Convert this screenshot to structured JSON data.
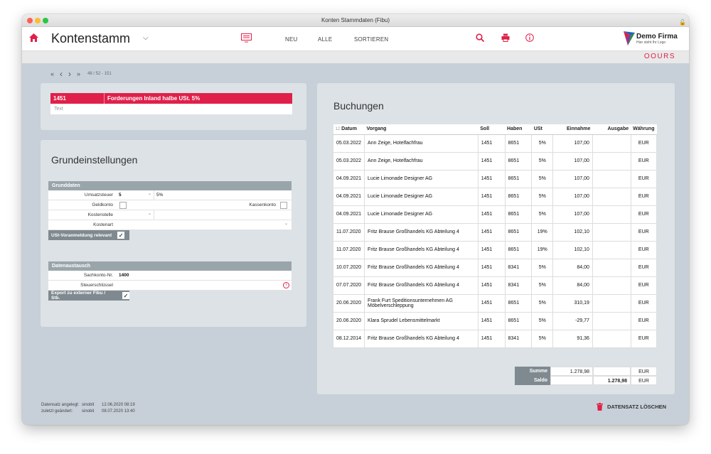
{
  "window": {
    "title": "Konten Stammdaten (Fibu)"
  },
  "header": {
    "title": "Kontenstamm",
    "nav": {
      "new": "NEU",
      "all": "ALLE",
      "sort": "SORTIEREN"
    },
    "logo": {
      "name": "Demo Firma",
      "tagline": "Hier steht Ihr Logo"
    }
  },
  "brand": "OOURS",
  "navigation": {
    "record": "48 / 52 - 151"
  },
  "account": {
    "number": "1451",
    "name": "Forderungen Inland halbe USt. 5%",
    "text_placeholder": "Text"
  },
  "settings": {
    "title": "Grundeinstellungen",
    "basic": {
      "heading": "Grunddaten",
      "vat_label": "Umsatzsteuer",
      "vat_value": "5",
      "vat_rate": "5%",
      "money_account_label": "Geldkonto",
      "cash_account_label": "Kassenkonto",
      "cost_center_label": "Kostenstelle",
      "cost_type_label": "Kostenart",
      "vat_prereg_label": "USt-Voranmeldung relevant"
    },
    "exchange": {
      "heading": "Datenaustausch",
      "ledger_no_label": "Sachkonto-Nr.",
      "ledger_no_value": "1400",
      "tax_key_label": "Steuerschlüssel",
      "export_label": "Export zu externer Fibu / Stb."
    }
  },
  "bookings": {
    "title": "Buchungen",
    "count": "12",
    "columns": {
      "date": "Datum",
      "process": "Vorgang",
      "debit": "Soll",
      "credit": "Haben",
      "vat": "USt",
      "income": "Einnahme",
      "expense": "Ausgabe",
      "currency": "Währung"
    },
    "rows": [
      {
        "date": "05.03.2022",
        "process": "Ann Zeige, Hotelfachfrau",
        "debit": "1451",
        "credit": "8651",
        "vat": "5%",
        "income": "107,00",
        "expense": "",
        "currency": "EUR"
      },
      {
        "date": "05.03.2022",
        "process": "Ann Zeige, Hotelfachfrau",
        "debit": "1451",
        "credit": "8651",
        "vat": "5%",
        "income": "107,00",
        "expense": "",
        "currency": "EUR"
      },
      {
        "date": "04.09.2021",
        "process": "Lucie Limonade Designer AG",
        "debit": "1451",
        "credit": "8651",
        "vat": "5%",
        "income": "107,00",
        "expense": "",
        "currency": "EUR"
      },
      {
        "date": "04.09.2021",
        "process": "Lucie Limonade Designer AG",
        "debit": "1451",
        "credit": "8651",
        "vat": "5%",
        "income": "107,00",
        "expense": "",
        "currency": "EUR"
      },
      {
        "date": "04.09.2021",
        "process": "Lucie Limonade Designer AG",
        "debit": "1451",
        "credit": "8651",
        "vat": "5%",
        "income": "107,00",
        "expense": "",
        "currency": "EUR"
      },
      {
        "date": "11.07.2020",
        "process": "Fritz Brause Großhandels KG Abteilung 4",
        "debit": "1451",
        "credit": "8651",
        "vat": "19%",
        "income": "102,10",
        "expense": "",
        "currency": "EUR"
      },
      {
        "date": "11.07.2020",
        "process": "Fritz Brause Großhandels KG Abteilung 4",
        "debit": "1451",
        "credit": "8651",
        "vat": "19%",
        "income": "102,10",
        "expense": "",
        "currency": "EUR"
      },
      {
        "date": "10.07.2020",
        "process": "Fritz Brause Großhandels KG Abteilung 4",
        "debit": "1451",
        "credit": "8341",
        "vat": "5%",
        "income": "84,00",
        "expense": "",
        "currency": "EUR"
      },
      {
        "date": "07.07.2020",
        "process": "Fritz Brause Großhandels KG Abteilung 4",
        "debit": "1451",
        "credit": "8341",
        "vat": "5%",
        "income": "84,00",
        "expense": "",
        "currency": "EUR"
      },
      {
        "date": "20.06.2020",
        "process": "Frank Furt Speditionsunternehmen AG Möbelverschleppung",
        "debit": "1451",
        "credit": "8651",
        "vat": "5%",
        "income": "310,19",
        "expense": "",
        "currency": "EUR"
      },
      {
        "date": "20.06.2020",
        "process": "Klara Sprudel Lebensmittelmarkt",
        "debit": "1451",
        "credit": "8651",
        "vat": "5%",
        "income": "-29,77",
        "expense": "",
        "currency": "EUR"
      },
      {
        "date": "08.12.2014",
        "process": "Fritz Brause Großhandels KG Abteilung 4",
        "debit": "1451",
        "credit": "8341",
        "vat": "5%",
        "income": "91,36",
        "expense": "",
        "currency": "EUR"
      }
    ],
    "sum_label": "Summe",
    "sum_value": "1.278,98",
    "sum_currency": "EUR",
    "balance_label": "Saldo",
    "balance_value": "1.278,98",
    "balance_currency": "EUR"
  },
  "footer": {
    "created_label": "Datensatz angelegt:",
    "created_user": "sinobit",
    "created_date": "12.06.2020 08:19",
    "changed_label": "zuletzt geändert:",
    "changed_user": "sinobit",
    "changed_date": "08.07.2020 13:40",
    "delete_label": "DATENSATZ LÖSCHEN"
  },
  "colors": {
    "accent": "#e0204a",
    "panel": "#dde2e6",
    "group_header": "#9aa5ab"
  }
}
